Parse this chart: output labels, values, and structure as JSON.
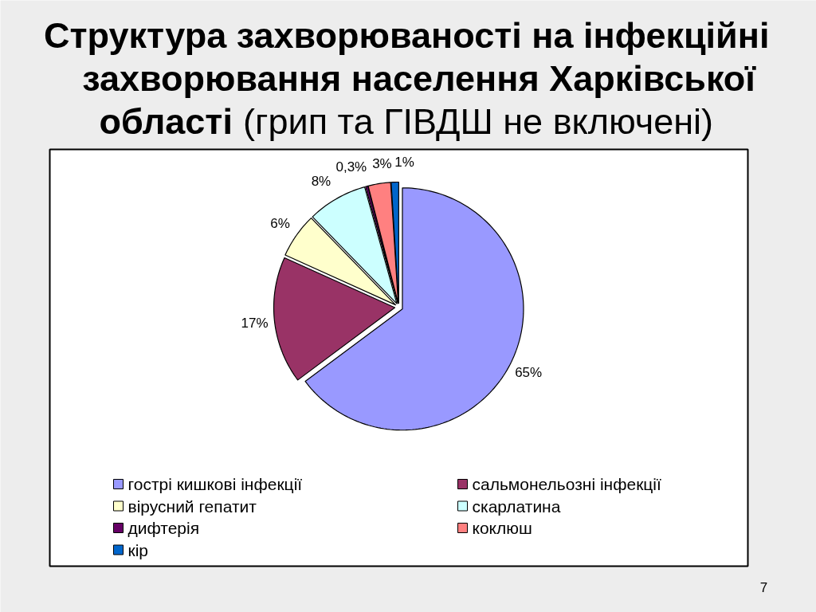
{
  "chart_data": {
    "type": "pie",
    "title": "Структура захворюваності на інфекційні захворювання населення Харківської області (грип та ГІВДШ не включені)",
    "categories": [
      "гострі кишкові інфекції",
      "сальмонельозні інфекції",
      "вірусний гепатит",
      "скарлатина",
      "дифтерія",
      "коклюш",
      "кір"
    ],
    "values": [
      65,
      17,
      6,
      8,
      0.3,
      3,
      1
    ],
    "colors": [
      "#9999ff",
      "#993366",
      "#ffffcc",
      "#ccffff",
      "#660066",
      "#ff8080",
      "#0066cc"
    ],
    "value_labels": [
      "65%",
      "17%",
      "6%",
      "8%",
      "0,3%",
      "3%",
      "1%"
    ],
    "legend": "bottom",
    "annotations": [
      "7"
    ]
  }
}
